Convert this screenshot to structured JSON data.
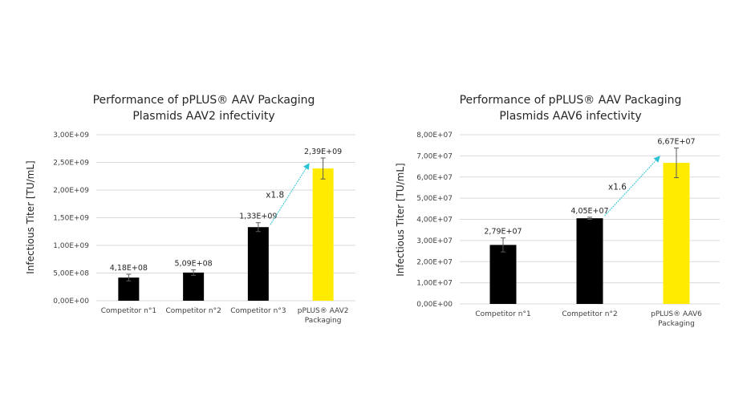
{
  "chart_data": [
    {
      "type": "bar",
      "title": [
        "Performance of pPLUS® AAV Packaging",
        "Plasmids AAV2 infectivity"
      ],
      "xlabel": "",
      "ylabel": "Infectious Titer [TU/mL]",
      "ylim": [
        0,
        3000000000
      ],
      "yticks": [
        0,
        500000000,
        1000000000,
        1500000000,
        2000000000,
        2500000000,
        3000000000
      ],
      "ytick_labels": [
        "0,00E+00",
        "5,00E+08",
        "1,00E+09",
        "1,50E+09",
        "2,00E+09",
        "2,50E+09",
        "3,00E+09"
      ],
      "grid": true,
      "categories": [
        [
          "Competitor n°1"
        ],
        [
          "Competitor n°2"
        ],
        [
          "Competitor n°3"
        ],
        [
          "pPLUS® AAV2",
          "Packaging"
        ]
      ],
      "values": [
        418000000,
        509000000,
        1330000000,
        2390000000
      ],
      "errors": [
        60000000,
        50000000,
        80000000,
        190000000
      ],
      "data_labels": [
        "4,18E+08",
        "5,09E+08",
        "1,33E+09",
        "2,39E+09"
      ],
      "colors": [
        "#000000",
        "#000000",
        "#000000",
        "#ffeb00"
      ],
      "annotation": {
        "text": "x1.8",
        "from_category": 2,
        "to_category": 3,
        "color": "#2bc4d4"
      }
    },
    {
      "type": "bar",
      "title": [
        "Performance of pPLUS® AAV Packaging",
        "Plasmids AAV6 infectivity"
      ],
      "xlabel": "",
      "ylabel": "Infectious Titer [TU/mL]",
      "ylim": [
        0,
        80000000
      ],
      "yticks": [
        0,
        10000000,
        20000000,
        30000000,
        40000000,
        50000000,
        60000000,
        70000000,
        80000000
      ],
      "ytick_labels": [
        "0,00E+00",
        "1,00E+07",
        "2,00E+07",
        "3,00E+07",
        "4,00E+07",
        "5,00E+07",
        "6,00E+07",
        "7,00E+07",
        "8,00E+07"
      ],
      "grid": true,
      "categories": [
        [
          "Competitor n°1"
        ],
        [
          "Competitor n°2"
        ],
        [
          "pPLUS® AAV6",
          "Packaging"
        ]
      ],
      "values": [
        27900000,
        40500000,
        66700000
      ],
      "errors": [
        3300000,
        500000,
        7000000
      ],
      "data_labels": [
        "2,79E+07",
        "4,05E+07",
        "6,67E+07"
      ],
      "colors": [
        "#000000",
        "#000000",
        "#ffeb00"
      ],
      "annotation": {
        "text": "x1.6",
        "from_category": 1,
        "to_category": 2,
        "color": "#2bc4d4"
      }
    }
  ]
}
